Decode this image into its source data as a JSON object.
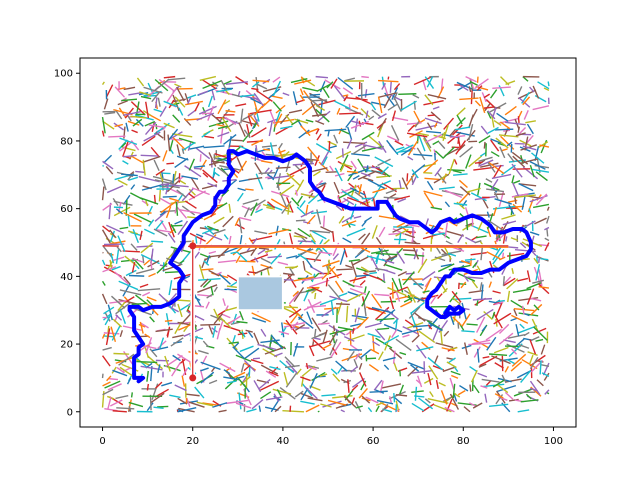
{
  "chart_data": {
    "type": "line",
    "title": "",
    "xlabel": "",
    "ylabel": "",
    "xlim": [
      -5,
      105
    ],
    "ylim": [
      -4.5,
      104.5
    ],
    "xticks": [
      0,
      20,
      40,
      60,
      80,
      100
    ],
    "yticks": [
      0,
      20,
      40,
      60,
      80,
      100
    ],
    "xtick_labels": [
      "0",
      "20",
      "40",
      "60",
      "80",
      "100"
    ],
    "ytick_labels": [
      "0",
      "20",
      "40",
      "60",
      "80",
      "100"
    ],
    "grid": false,
    "background_network": {
      "description_hidden": true,
      "x_range": [
        0,
        99
      ],
      "y_range": [
        0,
        99
      ],
      "segment_count": 2200,
      "palette": [
        "#1f77b4",
        "#ff7f0e",
        "#2ca02c",
        "#d62728",
        "#9467bd",
        "#8c564b",
        "#e377c2",
        "#7f7f7f",
        "#bcbd22",
        "#17becf"
      ]
    },
    "obstacles": [
      {
        "name": "wall-vertical",
        "x": [
          19.5,
          20.5
        ],
        "y": [
          10,
          49
        ],
        "color": "#ffffff"
      },
      {
        "name": "wall-horizontal",
        "x": [
          20,
          90
        ],
        "y": [
          48.5,
          49.5
        ],
        "color": "#ffffff"
      },
      {
        "name": "block",
        "x": [
          30,
          40
        ],
        "y": [
          30,
          40
        ],
        "color": "#aac8e0"
      }
    ],
    "reference_path": {
      "color": "#d62728",
      "points": [
        [
          20,
          10
        ],
        [
          20,
          49
        ],
        [
          90,
          49
        ]
      ]
    },
    "markers": [
      {
        "name": "start",
        "x": 20,
        "y": 10,
        "color": "#d62728"
      },
      {
        "name": "waypoint",
        "x": 20,
        "y": 49,
        "color": "#d62728"
      }
    ],
    "series": [
      {
        "name": "path",
        "color": "#0000ff",
        "points": [
          [
            8,
            9
          ],
          [
            9,
            10
          ],
          [
            8,
            10
          ],
          [
            7,
            10
          ],
          [
            7,
            12
          ],
          [
            7,
            14
          ],
          [
            7,
            16
          ],
          [
            8,
            17
          ],
          [
            8,
            19
          ],
          [
            9,
            20
          ],
          [
            8,
            22
          ],
          [
            7,
            24
          ],
          [
            7,
            26
          ],
          [
            7,
            28
          ],
          [
            6,
            30
          ],
          [
            6,
            31
          ],
          [
            8,
            31
          ],
          [
            9,
            30
          ],
          [
            11,
            31
          ],
          [
            13,
            31
          ],
          [
            15,
            32
          ],
          [
            16,
            33
          ],
          [
            17,
            34
          ],
          [
            17,
            36
          ],
          [
            17,
            38
          ],
          [
            18,
            40
          ],
          [
            17,
            42
          ],
          [
            16,
            43
          ],
          [
            15,
            44
          ],
          [
            16,
            46
          ],
          [
            17,
            48
          ],
          [
            18,
            50
          ],
          [
            18,
            52
          ],
          [
            19,
            54
          ],
          [
            20,
            56
          ],
          [
            22,
            58
          ],
          [
            24,
            59
          ],
          [
            25,
            61
          ],
          [
            25,
            63
          ],
          [
            26,
            65
          ],
          [
            27,
            65
          ],
          [
            28,
            67
          ],
          [
            28,
            69
          ],
          [
            29,
            71
          ],
          [
            28,
            73
          ],
          [
            28,
            75
          ],
          [
            28,
            77
          ],
          [
            29,
            77
          ],
          [
            30,
            76
          ],
          [
            32,
            77
          ],
          [
            34,
            76
          ],
          [
            36,
            75
          ],
          [
            38,
            75
          ],
          [
            40,
            74
          ],
          [
            42,
            75
          ],
          [
            43,
            76
          ],
          [
            44,
            75
          ],
          [
            45,
            74
          ],
          [
            46,
            72
          ],
          [
            46,
            70
          ],
          [
            46,
            68
          ],
          [
            47,
            66
          ],
          [
            48,
            65
          ],
          [
            49,
            63
          ],
          [
            51,
            62
          ],
          [
            53,
            61
          ],
          [
            55,
            60
          ],
          [
            57,
            60
          ],
          [
            59,
            60
          ],
          [
            61,
            60
          ],
          [
            61,
            62
          ],
          [
            63,
            62
          ],
          [
            64,
            60
          ],
          [
            65,
            58
          ],
          [
            66,
            57
          ],
          [
            68,
            56
          ],
          [
            70,
            56
          ],
          [
            72,
            54
          ],
          [
            73,
            53
          ],
          [
            74,
            54
          ],
          [
            75,
            56
          ],
          [
            77,
            57
          ],
          [
            78,
            56
          ],
          [
            80,
            57
          ],
          [
            82,
            58
          ],
          [
            84,
            57
          ],
          [
            86,
            55
          ],
          [
            87,
            53
          ],
          [
            89,
            53
          ],
          [
            91,
            54
          ],
          [
            93,
            54
          ],
          [
            94,
            53
          ],
          [
            95,
            50
          ],
          [
            95,
            48
          ],
          [
            94,
            46
          ],
          [
            92,
            45
          ],
          [
            90,
            44
          ],
          [
            88,
            42
          ],
          [
            86,
            42
          ],
          [
            84,
            41
          ],
          [
            82,
            41
          ],
          [
            80,
            42
          ],
          [
            78,
            42
          ],
          [
            77,
            40
          ],
          [
            76,
            40
          ],
          [
            75,
            38
          ],
          [
            74,
            36
          ],
          [
            73,
            35
          ],
          [
            72,
            33
          ],
          [
            72,
            31
          ],
          [
            73,
            30
          ],
          [
            74,
            29
          ],
          [
            75,
            28
          ],
          [
            76,
            28
          ],
          [
            77,
            29
          ],
          [
            79,
            29
          ],
          [
            80,
            30
          ],
          [
            79,
            31
          ],
          [
            78,
            30
          ],
          [
            77,
            31
          ],
          [
            76,
            29
          ]
        ]
      }
    ]
  }
}
